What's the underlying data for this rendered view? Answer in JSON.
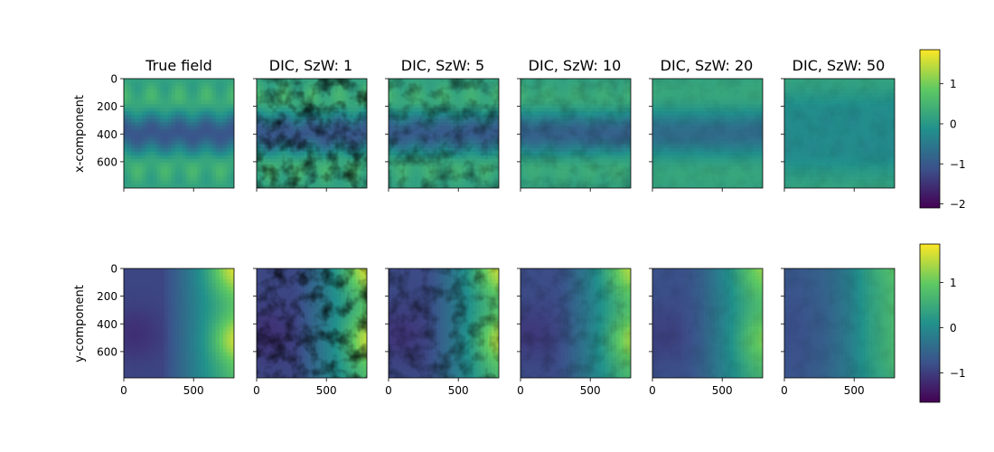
{
  "chart_data": {
    "type": "heatmap",
    "layout": "grid 2 rows x 6 columns",
    "column_titles": [
      "True field",
      "DIC, SzW: 1",
      "DIC, SzW: 5",
      "DIC, SzW: 10",
      "DIC, SzW: 20",
      "DIC, SzW: 50"
    ],
    "rows": [
      {
        "ylabel": "x-component",
        "colorbar": {
          "ticks": [
            "1",
            "0",
            "−1",
            "−2"
          ],
          "tick_values": [
            1,
            0,
            -1,
            -2
          ],
          "range": [
            -2.1,
            1.85
          ]
        }
      },
      {
        "ylabel": "y-component",
        "colorbar": {
          "ticks": [
            "1",
            "0",
            "−1"
          ],
          "tick_values": [
            1,
            0,
            -1
          ],
          "range": [
            -1.65,
            1.85
          ]
        }
      }
    ],
    "x_ticks": [
      "0",
      "500"
    ],
    "x_tick_values": [
      0,
      500
    ],
    "y_ticks": [
      "0",
      "200",
      "400",
      "600"
    ],
    "y_tick_values": [
      0,
      200,
      400,
      600
    ],
    "extent": [
      0,
      790
    ],
    "window_sizes": [
      0,
      1,
      5,
      10,
      20,
      50
    ],
    "colormap": "viridis",
    "colors": [
      "#440154",
      "#3b528b",
      "#21918c",
      "#5ec962",
      "#fde725"
    ]
  }
}
